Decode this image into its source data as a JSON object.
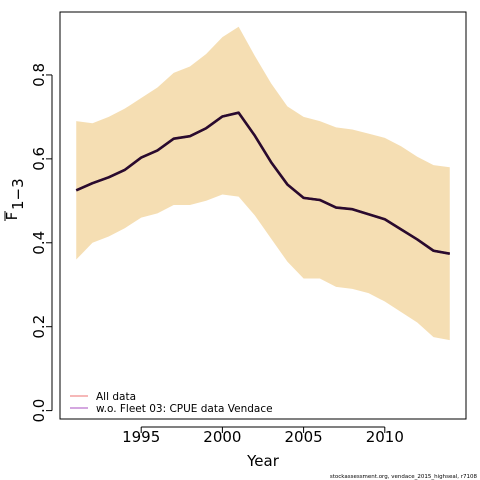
{
  "chart_data": {
    "type": "line",
    "xlabel": "Year",
    "ylabel_main": "F",
    "ylabel_sub": "1−3",
    "xlim": [
      1990,
      2015
    ],
    "ylim": [
      -0.02,
      0.95
    ],
    "x_ticks": [
      1995,
      2000,
      2005,
      2010
    ],
    "y_ticks": [
      0.0,
      0.2,
      0.4,
      0.6,
      0.8
    ],
    "x_tick_labels": [
      "1995",
      "2000",
      "2005",
      "2010"
    ],
    "y_tick_labels": [
      "0.0",
      "0.2",
      "0.4",
      "0.6",
      "0.8"
    ],
    "band_color": "#f5deb3",
    "x": [
      1991,
      1992,
      1993,
      1994,
      1995,
      1996,
      1997,
      1998,
      1999,
      2000,
      2001,
      2002,
      2003,
      2004,
      2005,
      2006,
      2007,
      2008,
      2009,
      2010,
      2011,
      2012,
      2013,
      2014
    ],
    "band_upper": [
      0.69,
      0.685,
      0.7,
      0.72,
      0.745,
      0.77,
      0.805,
      0.82,
      0.85,
      0.89,
      0.915,
      0.845,
      0.78,
      0.725,
      0.7,
      0.69,
      0.675,
      0.67,
      0.66,
      0.65,
      0.63,
      0.605,
      0.585,
      0.58
    ],
    "band_lower": [
      0.36,
      0.4,
      0.415,
      0.435,
      0.46,
      0.47,
      0.49,
      0.49,
      0.5,
      0.515,
      0.51,
      0.465,
      0.41,
      0.355,
      0.315,
      0.315,
      0.295,
      0.29,
      0.28,
      0.26,
      0.235,
      0.21,
      0.175,
      0.168
    ],
    "series": [
      {
        "name": "All data",
        "color": "#f4a0a0",
        "values": [
          0.525,
          0.542,
          0.556,
          0.574,
          0.603,
          0.62,
          0.648,
          0.654,
          0.673,
          0.701,
          0.71,
          0.655,
          0.592,
          0.539,
          0.507,
          0.502,
          0.484,
          0.48,
          0.468,
          0.456,
          0.432,
          0.408,
          0.381,
          0.374
        ]
      },
      {
        "name": "w.o. Fleet 03:  CPUE data Vendace",
        "color": "#c58ad6",
        "values": [
          0.525,
          0.542,
          0.556,
          0.574,
          0.603,
          0.62,
          0.648,
          0.654,
          0.673,
          0.701,
          0.71,
          0.655,
          0.592,
          0.539,
          0.507,
          0.502,
          0.484,
          0.48,
          0.468,
          0.456,
          0.432,
          0.408,
          0.381,
          0.374
        ]
      }
    ],
    "main_line_color": "#2a0a2e",
    "legend_position": "bottom-left",
    "footnote": "stockassessment.org,  vendace_2015_highseal,  r7108"
  }
}
